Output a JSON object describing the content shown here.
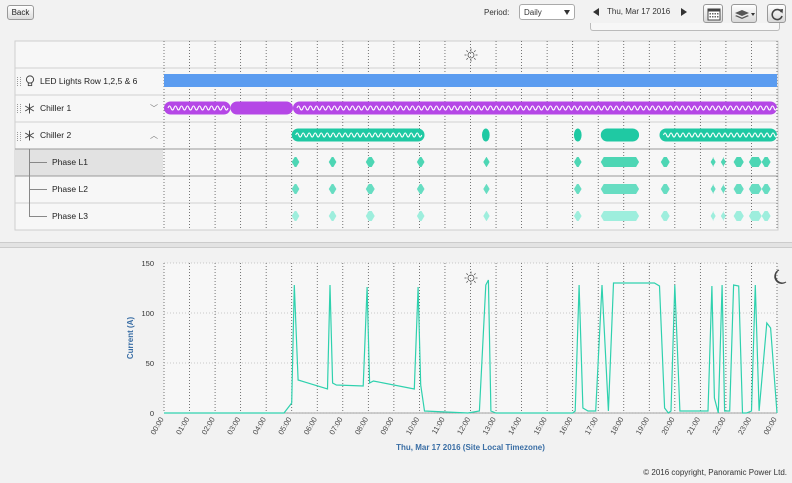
{
  "toolbar": {
    "back_label": "Back",
    "period_label": "Period:",
    "period_value": "Daily",
    "date": "Thu, Mar 17 2016"
  },
  "rows": [
    {
      "id": "led",
      "label": "LED Lights Row 1,2,5 & 6",
      "icon": "lightbulb-icon"
    },
    {
      "id": "chiller1",
      "label": "Chiller 1",
      "icon": "snowflake-icon"
    },
    {
      "id": "chiller2",
      "label": "Chiller 2",
      "icon": "snowflake-icon"
    },
    {
      "id": "l1",
      "label": "Phase L1"
    },
    {
      "id": "l2",
      "label": "Phase L2"
    },
    {
      "id": "l3",
      "label": "Phase L3"
    }
  ],
  "colors": {
    "led": "#5b9cf0",
    "chiller1": "#b547e6",
    "chiller2": "#1fc9a3",
    "phase_l1": "#4dd6b4",
    "phase_l2": "#67ddc2",
    "phase_l3": "#9eeedd",
    "line": "#2fd1ae"
  },
  "chart_data": {
    "type": "line",
    "xlabel": "Thu, Mar 17 2016 (Site Local Timezone)",
    "ylabel": "Current (A)",
    "xlim": [
      0,
      24
    ],
    "ylim": [
      0,
      150
    ],
    "yticks": [
      0,
      50,
      100,
      150
    ],
    "xtick_labels": [
      "00:00",
      "01:00",
      "02:00",
      "03:00",
      "04:00",
      "05:00",
      "06:00",
      "07:00",
      "08:00",
      "09:00",
      "10:00",
      "11:00",
      "12:00",
      "13:00",
      "14:00",
      "15:00",
      "16:00",
      "17:00",
      "18:00",
      "19:00",
      "20:00",
      "21:00",
      "22:00",
      "23:00",
      "00:00"
    ],
    "series": [
      {
        "x": [
          0,
          4.7,
          5.0,
          5.1,
          5.25,
          6.4,
          6.5,
          6.6,
          6.75,
          7.8,
          7.95,
          8.05,
          8.2,
          9.8,
          9.95,
          10.05,
          10.2,
          11.9,
          12.35,
          12.6,
          12.7,
          12.8,
          13.0,
          16.0,
          16.1,
          16.25,
          16.4,
          16.6,
          16.9,
          17.15,
          17.4,
          17.6,
          19.2,
          19.4,
          19.6,
          19.75,
          19.85,
          20.0,
          20.2,
          21.3,
          21.45,
          21.55,
          21.7,
          21.85,
          21.95,
          22.15,
          22.3,
          22.5,
          22.65,
          22.8,
          23.0,
          23.15,
          23.3,
          23.6,
          23.75,
          24.0
        ],
        "y": [
          0,
          0,
          10,
          128,
          33,
          24,
          128,
          30,
          28,
          27,
          126,
          30,
          32,
          24,
          126,
          28,
          2,
          0,
          2,
          128,
          133,
          2,
          0,
          0,
          2,
          128,
          5,
          2,
          2,
          128,
          2,
          130,
          130,
          127,
          5,
          0,
          2,
          128,
          2,
          2,
          127,
          15,
          0,
          128,
          2,
          2,
          128,
          127,
          0,
          0,
          2,
          128,
          2,
          90,
          85,
          0
        ]
      }
    ]
  }
}
